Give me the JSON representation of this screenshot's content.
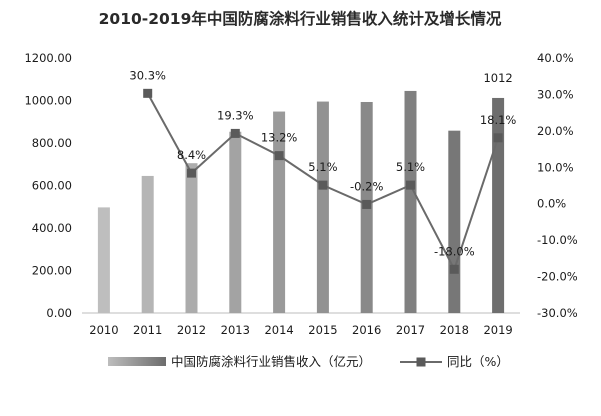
{
  "chart_data": {
    "type": "bar+line",
    "title": "2010-2019年中国防腐涂料行业销售收入统计及增长情况",
    "categories": [
      "2010",
      "2011",
      "2012",
      "2013",
      "2014",
      "2015",
      "2016",
      "2017",
      "2018",
      "2019"
    ],
    "series": [
      {
        "name": "中国防腐涂料行业销售收入（亿元）",
        "type": "bar",
        "axis": "left",
        "values": [
          497,
          645,
          705,
          853,
          948,
          995,
          993,
          1045,
          858,
          1012
        ],
        "data_labels": [
          "",
          "",
          "",
          "",
          "",
          "",
          "",
          "",
          "",
          "1012"
        ]
      },
      {
        "name": "同比（%）",
        "type": "line",
        "axis": "right",
        "values": [
          null,
          30.3,
          8.4,
          19.3,
          13.2,
          5.1,
          -0.2,
          5.1,
          -18.0,
          18.1
        ],
        "data_labels": [
          "",
          "30.3%",
          "8.4%",
          "19.3%",
          "13.2%",
          "5.1%",
          "-0.2%",
          "5.1%",
          "-18.0%",
          "18.1%"
        ]
      }
    ],
    "y_left": {
      "min": 0,
      "max": 1200,
      "step": 200,
      "tick_labels": [
        "0.00",
        "200.00",
        "400.00",
        "600.00",
        "800.00",
        "1000.00",
        "1200.00"
      ]
    },
    "y_right": {
      "min": -30,
      "max": 40,
      "step": 10,
      "tick_labels": [
        "-30.0%",
        "-20.0%",
        "-10.0%",
        "0.0%",
        "10.0%",
        "20.0%",
        "30.0%",
        "40.0%"
      ]
    },
    "grid": false,
    "legend_position": "bottom",
    "colors": {
      "bar_light": "#b8b8b8",
      "bar_dark": "#6e6e6e",
      "line": "#6a6a6a",
      "marker": "#5a5a5a",
      "text": "#1a1a1a",
      "title": "#2a2a2a",
      "axis": "#bdbdbd"
    }
  }
}
